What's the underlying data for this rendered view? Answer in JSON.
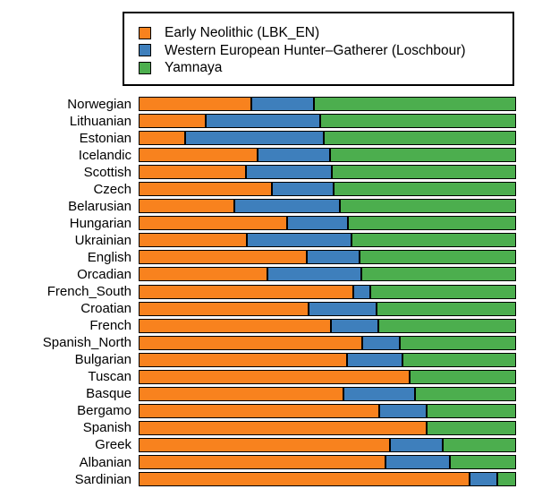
{
  "legend": {
    "items": [
      {
        "key": "early-neolithic",
        "label": "Early Neolithic (LBK_EN)",
        "color": "#F8821E"
      },
      {
        "key": "whg-loschbour",
        "label": "Western European Hunter–Gatherer (Loschbour)",
        "color": "#3E7FBC"
      },
      {
        "key": "yamnaya",
        "label": "Yamnaya",
        "color": "#4CAE4E"
      }
    ]
  },
  "chart_data": {
    "type": "bar",
    "orientation": "horizontal",
    "stacked": true,
    "title": "",
    "xlabel": "",
    "ylabel": "",
    "xlim": [
      0,
      1
    ],
    "grid": false,
    "legend_position": "top",
    "categories": [
      "Norwegian",
      "Lithuanian",
      "Estonian",
      "Icelandic",
      "Scottish",
      "Czech",
      "Belarusian",
      "Hungarian",
      "Ukrainian",
      "English",
      "Orcadian",
      "French_South",
      "Croatian",
      "French",
      "Spanish_North",
      "Bulgarian",
      "Tuscan",
      "Basque",
      "Bergamo",
      "Spanish",
      "Greek",
      "Albanian",
      "Sardinian"
    ],
    "series": [
      {
        "name": "Early Neolithic (LBK_EN)",
        "key": "early-neolithic",
        "color": "#F8821E",
        "values": [
          0.296,
          0.173,
          0.118,
          0.313,
          0.282,
          0.351,
          0.249,
          0.391,
          0.284,
          0.443,
          0.339,
          0.566,
          0.448,
          0.507,
          0.59,
          0.55,
          0.716,
          0.54,
          0.635,
          0.763,
          0.664,
          0.652,
          0.877
        ]
      },
      {
        "name": "Western European Hunter–Gatherer (Loschbour)",
        "key": "whg-loschbour",
        "color": "#3E7FBC",
        "values": [
          0.166,
          0.306,
          0.37,
          0.192,
          0.227,
          0.163,
          0.282,
          0.161,
          0.277,
          0.14,
          0.249,
          0.045,
          0.18,
          0.126,
          0.1,
          0.147,
          0.0,
          0.19,
          0.126,
          0.0,
          0.14,
          0.171,
          0.073
        ]
      },
      {
        "name": "Yamnaya",
        "key": "yamnaya",
        "color": "#4CAE4E",
        "values": [
          0.538,
          0.521,
          0.512,
          0.495,
          0.491,
          0.486,
          0.469,
          0.448,
          0.439,
          0.417,
          0.412,
          0.389,
          0.372,
          0.367,
          0.31,
          0.303,
          0.284,
          0.27,
          0.239,
          0.237,
          0.196,
          0.177,
          0.05
        ]
      }
    ]
  }
}
